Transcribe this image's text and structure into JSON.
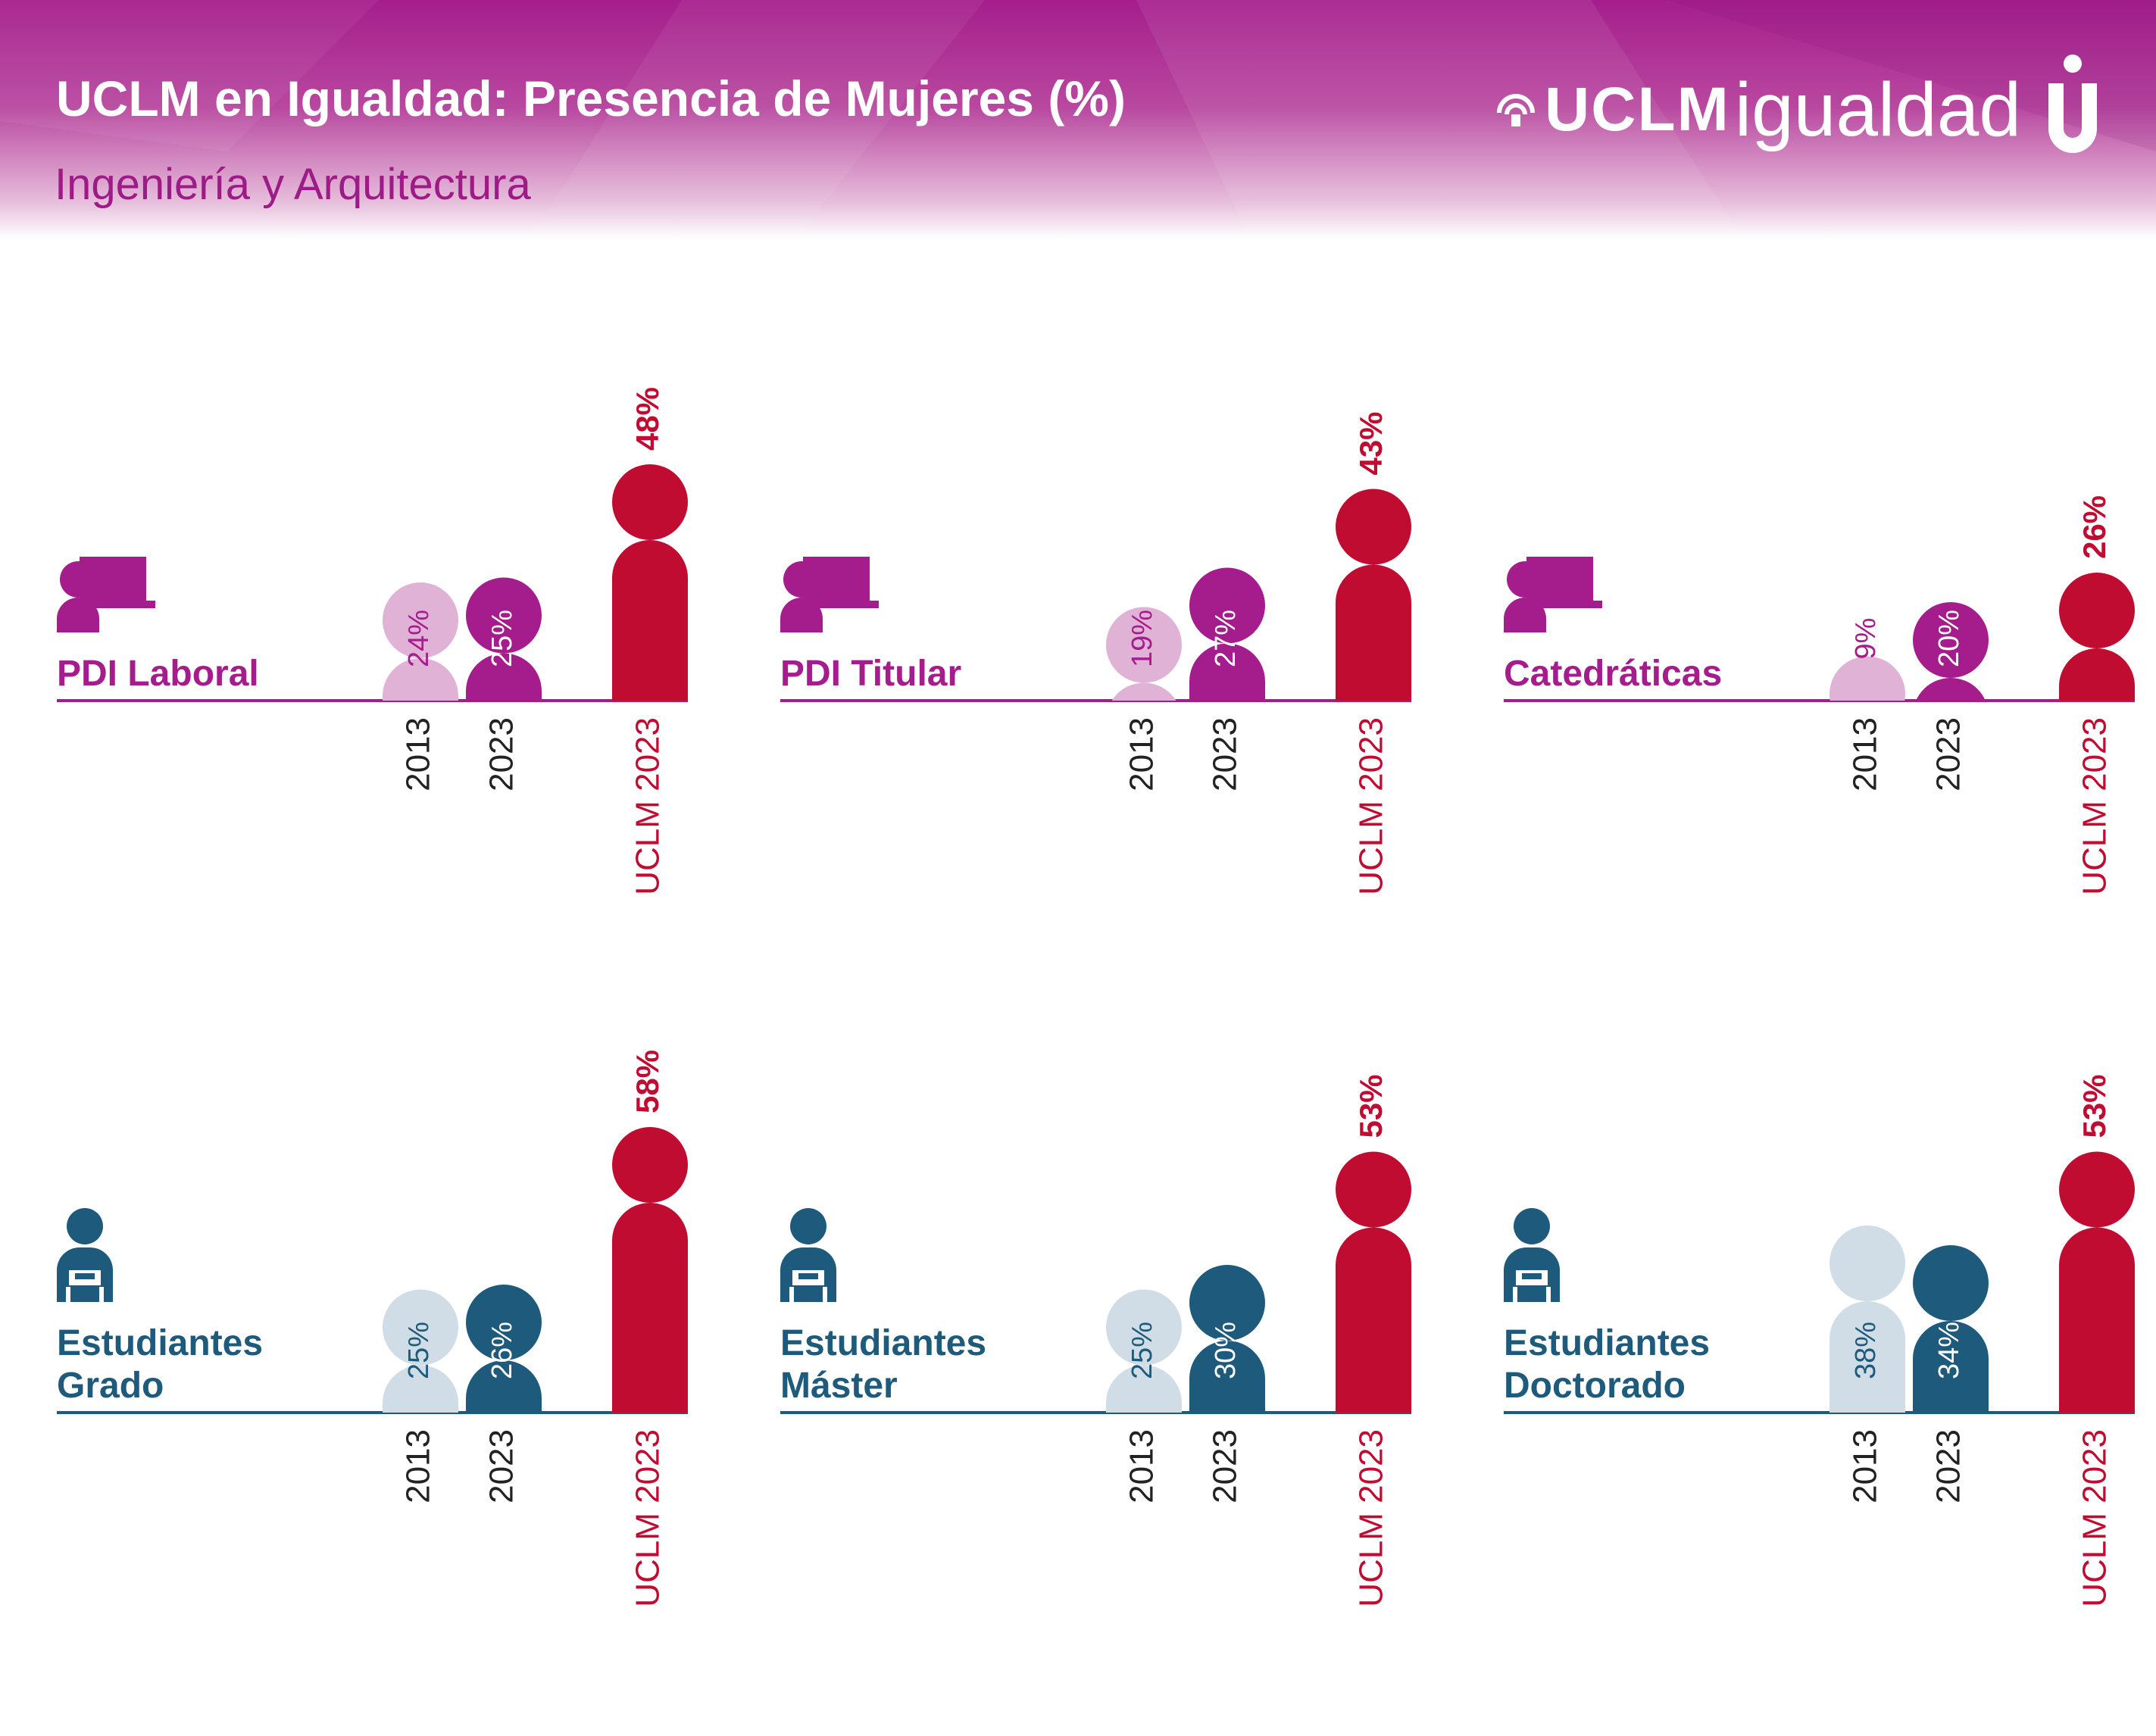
{
  "header": {
    "title": "UCLM en Igualdad: Presencia de Mujeres (%)",
    "subtitle": "Ingeniería y Arquitectura",
    "logo_uclm": "UCLM",
    "logo_igualdad": "igualdad"
  },
  "colors": {
    "pdi_main": "#a51c8c",
    "pdi_light": "#e0b2d5",
    "stu_main": "#1d5a7c",
    "stu_light": "#d0dde6",
    "uclm": "#c10c31",
    "year_text": "#222222"
  },
  "chart_data": [
    {
      "type": "pictogram-bar",
      "group": "pdi",
      "label_lines": [
        "PDI Laboral"
      ],
      "categories": [
        "2013",
        "2023",
        "UCLM 2023"
      ],
      "values": [
        24,
        25,
        48
      ],
      "value_labels": [
        "24%",
        "25%",
        "48%"
      ],
      "unit": "%"
    },
    {
      "type": "pictogram-bar",
      "group": "pdi",
      "label_lines": [
        "PDI Titular"
      ],
      "categories": [
        "2013",
        "2023",
        "UCLM 2023"
      ],
      "values": [
        19,
        27,
        43
      ],
      "value_labels": [
        "19%",
        "27%",
        "43%"
      ],
      "unit": "%"
    },
    {
      "type": "pictogram-bar",
      "group": "pdi",
      "label_lines": [
        "Catedráticas"
      ],
      "categories": [
        "2013",
        "2023",
        "UCLM 2023"
      ],
      "values": [
        9,
        20,
        26
      ],
      "value_labels": [
        "9%",
        "20%",
        "26%"
      ],
      "unit": "%"
    },
    {
      "type": "pictogram-bar",
      "group": "stu",
      "label_lines": [
        "Estudiantes",
        "Grado"
      ],
      "categories": [
        "2013",
        "2023",
        "UCLM 2023"
      ],
      "values": [
        25,
        26,
        58
      ],
      "value_labels": [
        "25%",
        "26%",
        "58%"
      ],
      "unit": "%"
    },
    {
      "type": "pictogram-bar",
      "group": "stu",
      "label_lines": [
        "Estudiantes",
        "Máster"
      ],
      "categories": [
        "2013",
        "2023",
        "UCLM 2023"
      ],
      "values": [
        25,
        30,
        53
      ],
      "value_labels": [
        "25%",
        "30%",
        "53%"
      ],
      "unit": "%"
    },
    {
      "type": "pictogram-bar",
      "group": "stu",
      "label_lines": [
        "Estudiantes",
        "Doctorado"
      ],
      "categories": [
        "2013",
        "2023",
        "UCLM 2023"
      ],
      "values": [
        38,
        34,
        53
      ],
      "value_labels": [
        "38%",
        "34%",
        "53%"
      ],
      "unit": "%"
    }
  ]
}
